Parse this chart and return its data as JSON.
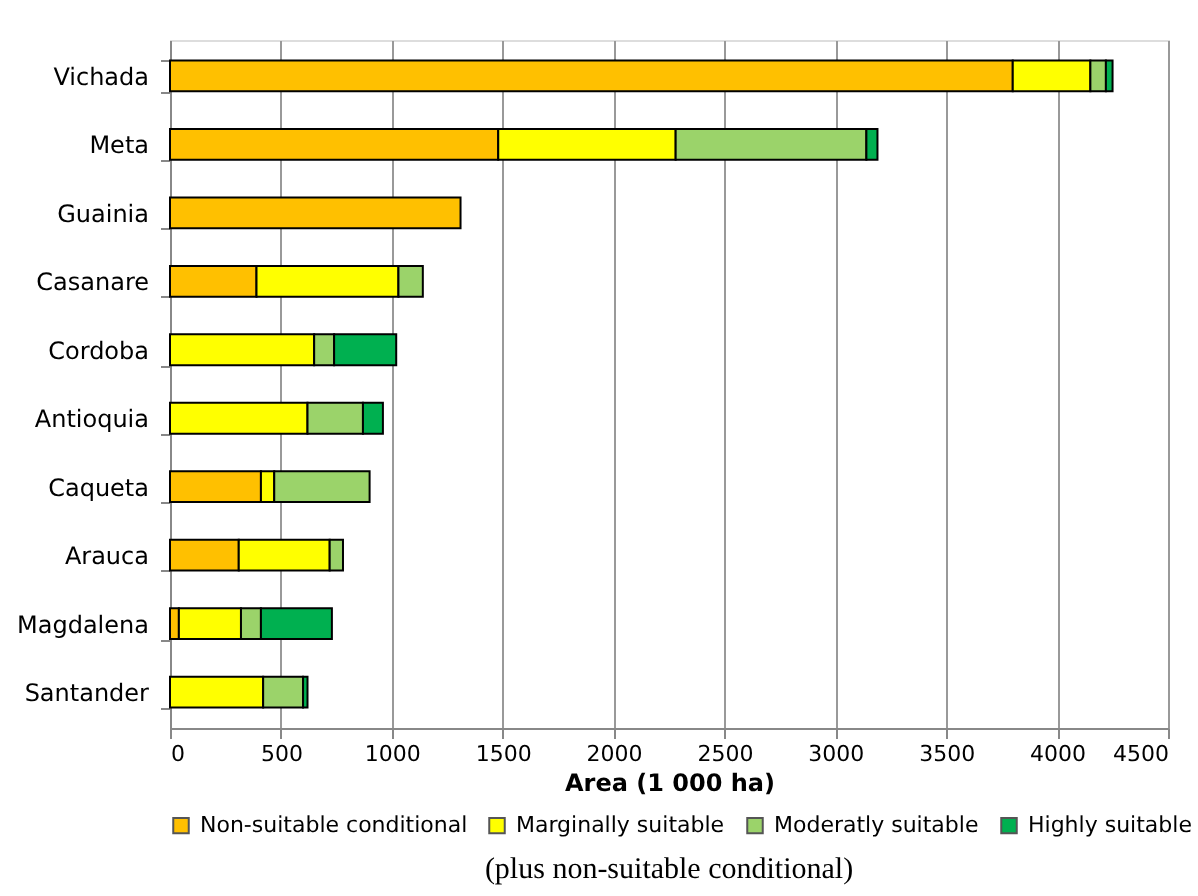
{
  "chart_data": {
    "type": "bar",
    "orientation": "horizontal",
    "stacked": true,
    "categories": [
      "Vichada",
      "Meta",
      "Guainia",
      "Casanare",
      "Cordoba",
      "Antioquia",
      "Caqueta",
      "Arauca",
      "Magdalena",
      "Santander"
    ],
    "series": [
      {
        "name": "Non-suitable conditional",
        "color": "#ffc000",
        "values": [
          3800,
          1480,
          1310,
          390,
          null,
          null,
          410,
          310,
          40,
          null
        ]
      },
      {
        "name": "Marginally suitable",
        "color": "#ffff00",
        "values": [
          350,
          800,
          null,
          640,
          650,
          620,
          60,
          410,
          280,
          420
        ]
      },
      {
        "name": "Moderatly suitable",
        "color": "#9bd36a",
        "values": [
          70,
          860,
          null,
          110,
          90,
          250,
          430,
          60,
          90,
          180
        ]
      },
      {
        "name": "Highly suitable",
        "color": "#00b050",
        "values": [
          30,
          50,
          null,
          null,
          280,
          90,
          null,
          null,
          320,
          20
        ]
      }
    ],
    "xlabel": "Area (1 000 ha)",
    "xlim": [
      0,
      4500
    ],
    "xticks": [
      0,
      500,
      1000,
      1500,
      2000,
      2500,
      3000,
      3500,
      4000,
      4500
    ],
    "grid": "x",
    "legend": "bottom",
    "annotations": [
      "(plus non-suitable conditional)"
    ]
  }
}
